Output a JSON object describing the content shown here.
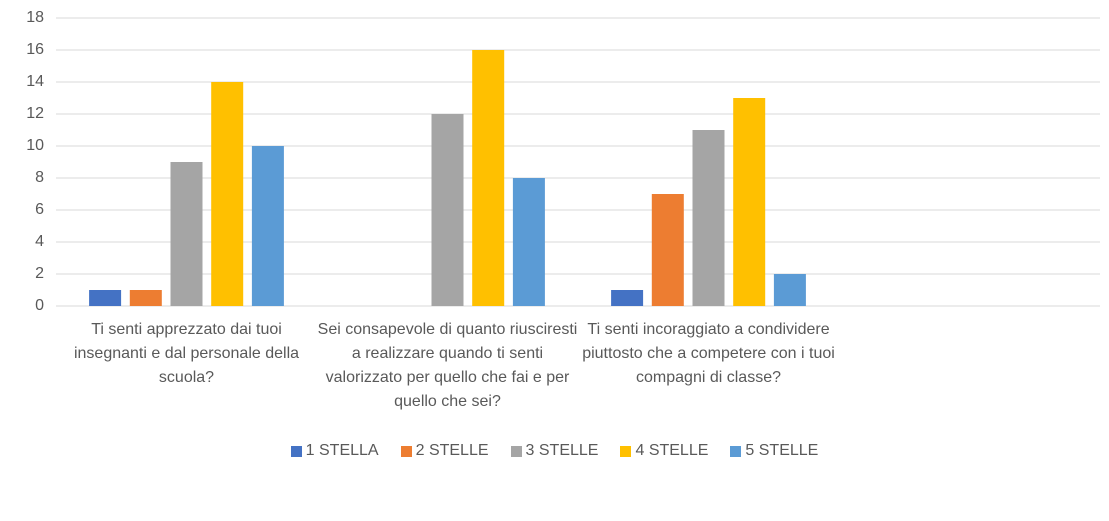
{
  "chart_data": {
    "type": "bar",
    "categories": [
      "Ti senti apprezzato dai tuoi insegnanti e dal personale della scuola?",
      "Sei consapevole di quanto riusciresti a realizzare quando ti senti valorizzato per quello che fai e per quello che sei?",
      "Ti senti incoraggiato a condividere piuttosto che a competere con i tuoi compagni di classe?",
      null
    ],
    "series": [
      {
        "name": "1 STELLA",
        "color": "#4472c4",
        "values": [
          1,
          0,
          1,
          null
        ]
      },
      {
        "name": "2 STELLE",
        "color": "#ed7d31",
        "values": [
          1,
          0,
          7,
          null
        ]
      },
      {
        "name": "3 STELLE",
        "color": "#a5a5a5",
        "values": [
          9,
          12,
          11,
          null
        ]
      },
      {
        "name": "4 STELLE",
        "color": "#ffc000",
        "values": [
          14,
          16,
          13,
          null
        ]
      },
      {
        "name": "5 STELLE",
        "color": "#5b9bd5",
        "values": [
          10,
          8,
          2,
          null
        ]
      }
    ],
    "ylim": [
      0,
      18
    ],
    "yticks": [
      0,
      2,
      4,
      6,
      8,
      10,
      12,
      14,
      16,
      18
    ],
    "grid": true,
    "legend": "bottom"
  }
}
